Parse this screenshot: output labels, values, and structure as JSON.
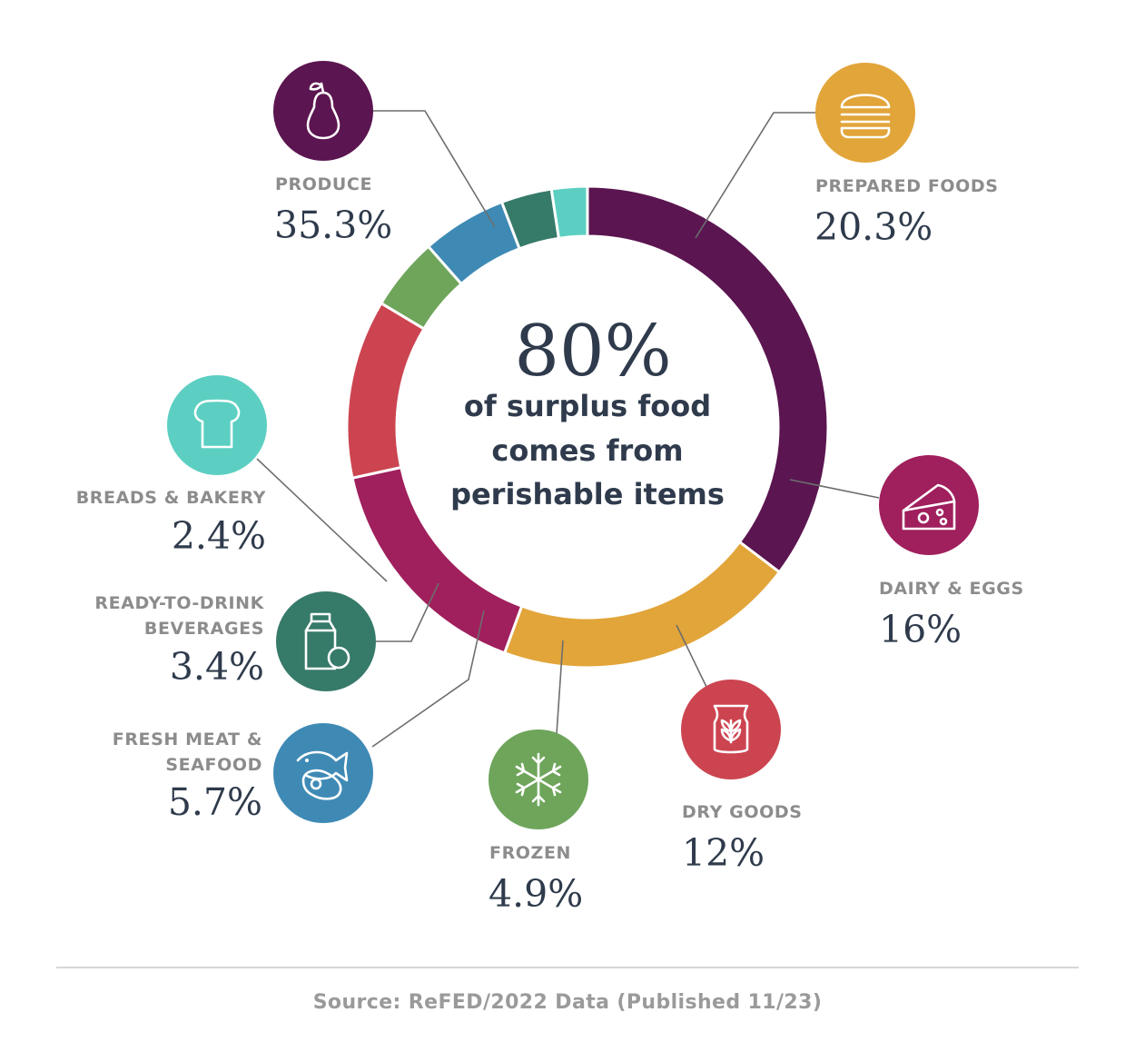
{
  "chart_data": {
    "type": "pie",
    "style": "donut",
    "categories": [
      "Produce",
      "Prepared Foods",
      "Dairy & Eggs",
      "Dry Goods",
      "Frozen",
      "Fresh Meat & Seafood",
      "Ready-to-Drink Beverages",
      "Breads & Bakery"
    ],
    "values": [
      35.3,
      20.3,
      16,
      12,
      4.9,
      5.7,
      3.4,
      2.4
    ],
    "slices": [
      {
        "label": "PRODUCE",
        "value_label": "35.3%",
        "value": 35.3,
        "color": "#5b1550",
        "icon": "pear-icon"
      },
      {
        "label": "PREPARED FOODS",
        "value_label": "20.3%",
        "value": 20.3,
        "color": "#e2a53a",
        "icon": "burger-icon"
      },
      {
        "label": "DAIRY & EGGS",
        "value_label": "16%",
        "value": 16,
        "color": "#a01f5d",
        "icon": "cheese-icon"
      },
      {
        "label": "DRY GOODS",
        "value_label": "12%",
        "value": 12,
        "color": "#cc4450",
        "icon": "grain-bag-icon"
      },
      {
        "label": "FROZEN",
        "value_label": "4.9%",
        "value": 4.9,
        "color": "#6ea55b",
        "icon": "snowflake-icon"
      },
      {
        "label_lines": [
          "FRESH MEAT &",
          "SEAFOOD"
        ],
        "value_label": "5.7%",
        "value": 5.7,
        "color": "#3f8ab5",
        "icon": "fish-steak-icon"
      },
      {
        "label_lines": [
          "READY-TO-DRINK",
          "BEVERAGES"
        ],
        "value_label": "3.4%",
        "value": 3.4,
        "color": "#367a6a",
        "icon": "milk-carton-icon"
      },
      {
        "label": "BREADS & BAKERY",
        "value_label": "2.4%",
        "value": 2.4,
        "color": "#5ccfc2",
        "icon": "bread-icon"
      }
    ],
    "center": {
      "big": "80%",
      "lines": [
        "of surplus food",
        "comes from",
        "perishable items"
      ]
    }
  },
  "source": "Source: ReFED/2022 Data (Published 11/23)"
}
